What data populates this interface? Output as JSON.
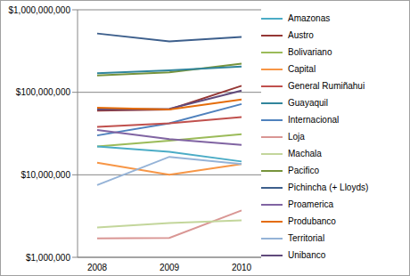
{
  "chart_data": {
    "type": "line",
    "categories": [
      "2008",
      "2009",
      "2010"
    ],
    "series": [
      {
        "name": "Pichincha (+ Lloyds)",
        "color": "#3D5F8C",
        "values": [
          516000000,
          414000000,
          468000000
        ]
      },
      {
        "name": "Pacifico",
        "color": "#77933C",
        "values": [
          160000000,
          175000000,
          222000000
        ]
      },
      {
        "name": "Guayaquil",
        "color": "#31859C",
        "values": [
          170000000,
          185000000,
          205000000
        ]
      },
      {
        "name": "Austro",
        "color": "#953735",
        "values": [
          60000000,
          62000000,
          120000000
        ]
      },
      {
        "name": "Unibanco",
        "color": "#604A7B",
        "values": [
          62000000,
          63000000,
          105000000
        ]
      },
      {
        "name": "Produbanco",
        "color": "#E46C0A",
        "values": [
          65000000,
          62000000,
          82000000
        ]
      },
      {
        "name": "Internacional",
        "color": "#4F81BD",
        "values": [
          30000000,
          42000000,
          72000000
        ]
      },
      {
        "name": "General Rumiñahui",
        "color": "#C0504D",
        "values": [
          38000000,
          42000000,
          50000000
        ]
      },
      {
        "name": "Bolivariano",
        "color": "#9BBB59",
        "values": [
          22000000,
          26000000,
          31000000
        ]
      },
      {
        "name": "Proamerica",
        "color": "#8064A2",
        "values": [
          35000000,
          27000000,
          23000000
        ]
      },
      {
        "name": "Amazonas",
        "color": "#4BACC6",
        "values": [
          22000000,
          19000000,
          14500000
        ]
      },
      {
        "name": "Capital",
        "color": "#F79646",
        "values": [
          14000000,
          10000000,
          13500000
        ]
      },
      {
        "name": "Territorial",
        "color": "#95B3D7",
        "values": [
          7500000,
          16500000,
          13500000
        ]
      },
      {
        "name": "Loja",
        "color": "#D99694",
        "values": [
          1700000,
          1720000,
          3700000
        ]
      },
      {
        "name": "Machala",
        "color": "#C3D69B",
        "values": [
          2300000,
          2600000,
          2800000
        ]
      }
    ],
    "ylim": [
      1000000,
      1000000000
    ],
    "yticks": [
      {
        "value": 1000000,
        "label": "$1,000,000"
      },
      {
        "value": 10000000,
        "label": "$10,000,000"
      },
      {
        "value": 100000000,
        "label": "$100,000,000"
      },
      {
        "value": 1000000000,
        "label": "$1,000,000,000"
      }
    ],
    "log": "y",
    "grid": true,
    "legend": "right"
  }
}
